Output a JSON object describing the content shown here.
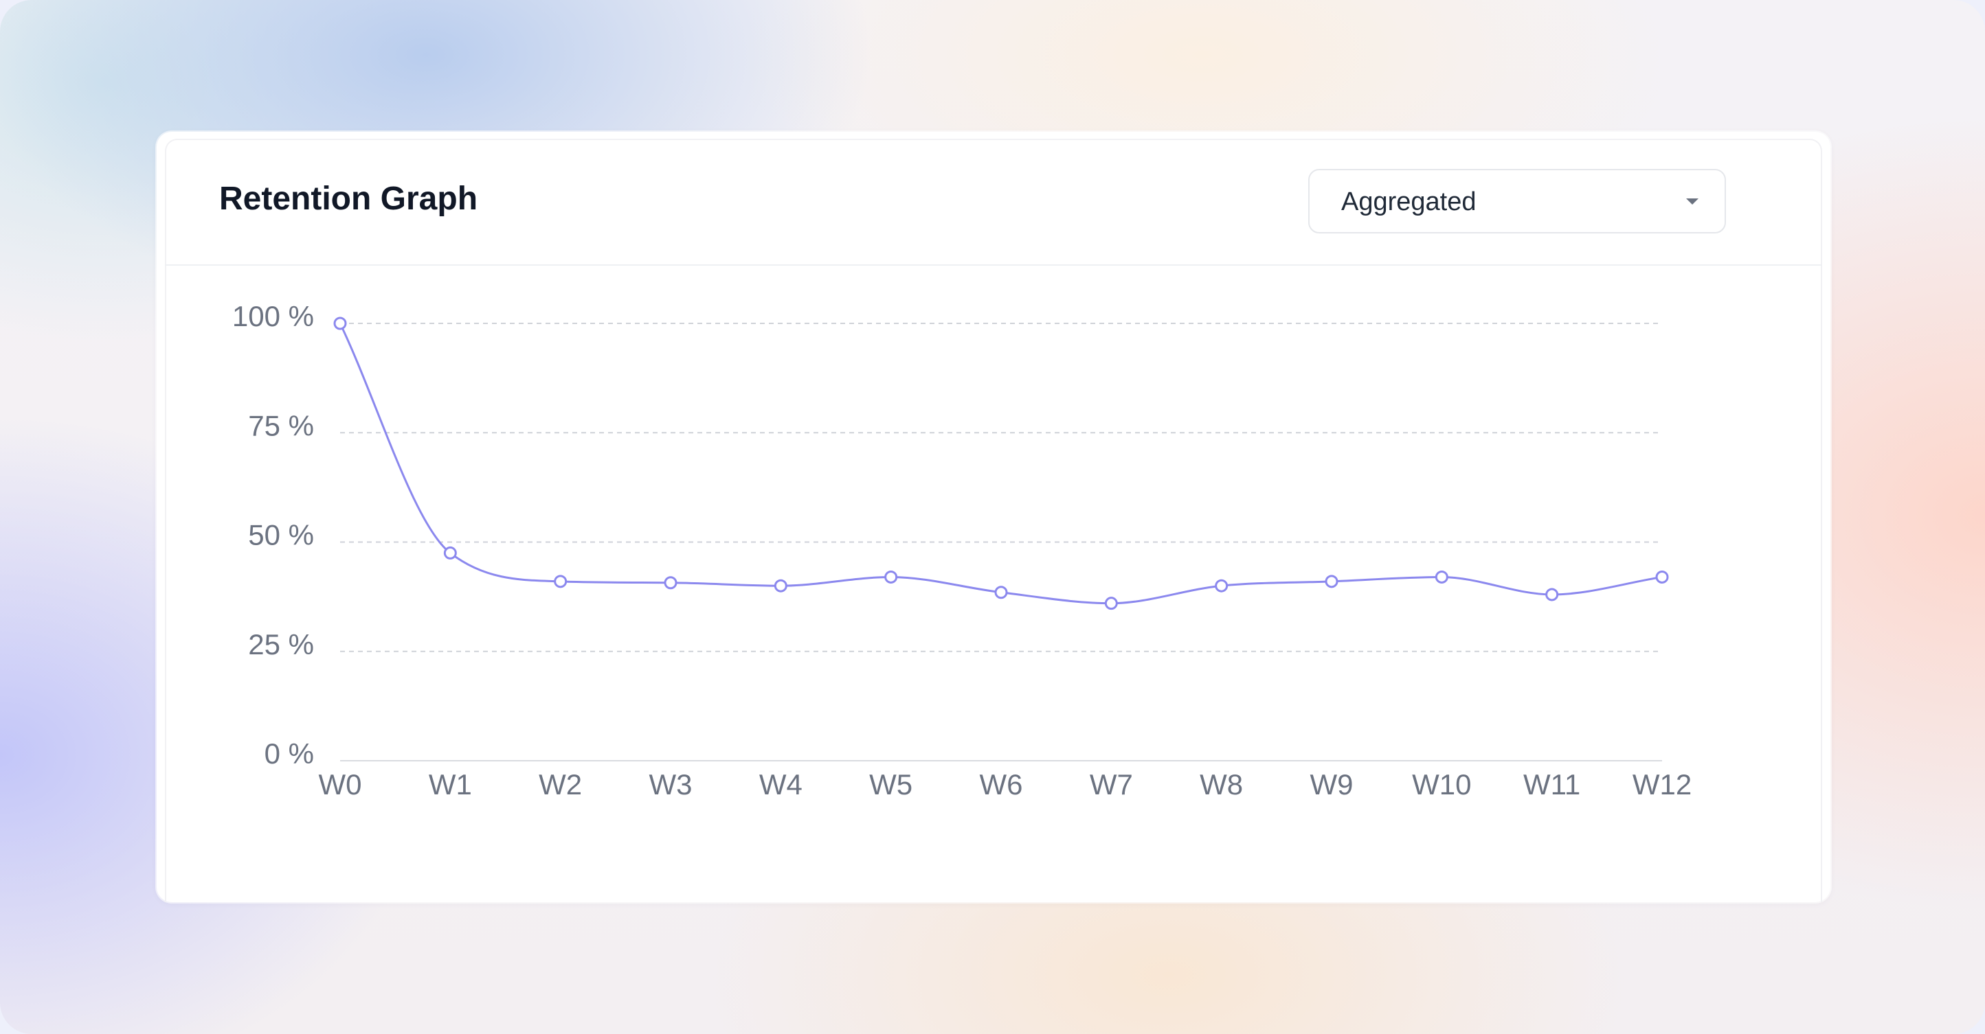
{
  "card": {
    "title": "Retention Graph"
  },
  "view_select": {
    "value": "Aggregated",
    "icon": "chevron-down-icon"
  },
  "colors": {
    "series_line": "#8b88ee",
    "point_fill": "#ffffff",
    "grid": "#cfd2d8",
    "axis_text": "#6b7280"
  },
  "chart_data": {
    "type": "line",
    "categories": [
      "W0",
      "W1",
      "W2",
      "W3",
      "W4",
      "W5",
      "W6",
      "W7",
      "W8",
      "W9",
      "W10",
      "W11",
      "W12"
    ],
    "series": [
      {
        "values": [
          100,
          47.5,
          41,
          40.7,
          40,
          42,
          38.5,
          36,
          40,
          41,
          42,
          38,
          42
        ]
      }
    ],
    "y_ticks": [
      "0 %",
      "25 %",
      "50 %",
      "75 %",
      "100 %"
    ],
    "ylim": [
      0,
      100
    ],
    "y_tick_values": [
      0,
      25,
      50,
      75,
      100
    ],
    "y_unit": "%",
    "grid": "horizontal dashed",
    "curve": "smooth",
    "legend": "none"
  }
}
